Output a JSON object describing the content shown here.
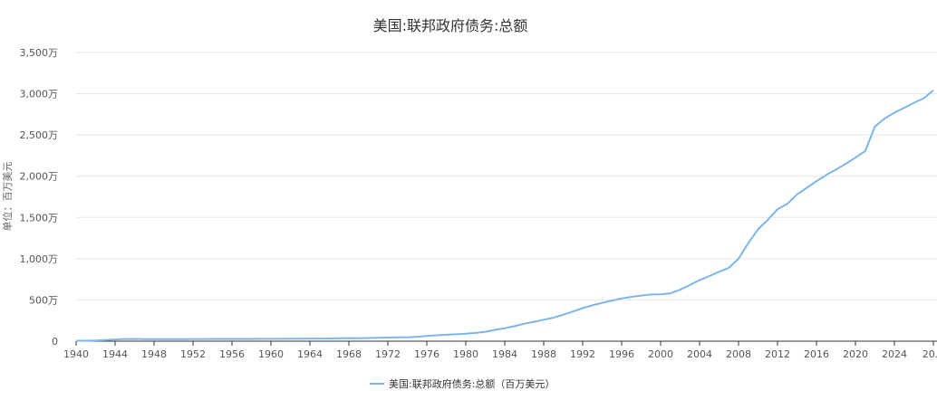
{
  "chart_data": {
    "type": "line",
    "title": "美国:联邦政府债务:总额",
    "ylabel": "单位：百万美元",
    "xlabel": "",
    "series": [
      {
        "name": "美国:联邦政府债务:总额（百万美元）",
        "color": "#7cb5ec",
        "x": [
          1940,
          1941,
          1942,
          1943,
          1944,
          1945,
          1946,
          1947,
          1948,
          1949,
          1950,
          1951,
          1952,
          1953,
          1954,
          1955,
          1956,
          1957,
          1958,
          1959,
          1960,
          1961,
          1962,
          1963,
          1964,
          1965,
          1966,
          1967,
          1968,
          1969,
          1970,
          1971,
          1972,
          1973,
          1974,
          1975,
          1976,
          1977,
          1978,
          1979,
          1980,
          1981,
          1982,
          1983,
          1984,
          1985,
          1986,
          1987,
          1988,
          1989,
          1990,
          1991,
          1992,
          1993,
          1994,
          1995,
          1996,
          1997,
          1998,
          1999,
          2000,
          2001,
          2002,
          2003,
          2004,
          2005,
          2006,
          2007,
          2008,
          2009,
          2010,
          2011,
          2012,
          2013,
          2014,
          2015,
          2016,
          2017,
          2018,
          2019,
          2020,
          2021,
          2022,
          2023,
          2024,
          2025,
          2026,
          2027,
          2028
        ],
        "values": [
          5100000,
          5800000,
          7900000,
          14200000,
          20400000,
          26000000,
          27100000,
          25700000,
          25200000,
          25300000,
          25700000,
          25500000,
          25900000,
          26600000,
          27100000,
          27400000,
          27300000,
          27200000,
          27900000,
          28500000,
          29000000,
          28900000,
          30300000,
          31000000,
          31600000,
          32100000,
          32800000,
          34100000,
          36800000,
          36600000,
          38100000,
          40800000,
          43700000,
          45800000,
          47500000,
          54100000,
          63100000,
          70900000,
          77600000,
          83000000,
          90800000,
          99500000,
          114200000,
          137000000,
          156400000,
          181700000,
          212100000,
          234500000,
          260100000,
          285700000,
          320700000,
          360000000,
          400200000,
          435100000,
          464300000,
          492100000,
          517400000,
          537300000,
          552600000,
          565600000,
          568000000,
          580000000,
          622800000,
          681300000,
          740000000,
          790000000,
          842000000,
          890000000,
          1000000000,
          1190000000,
          1356000000,
          1470000000,
          1600000000,
          1665000000,
          1780000000,
          1860000000,
          1940000000,
          2015000000,
          2080000000,
          2150000000,
          2225000000,
          2305000000,
          2603000000,
          2700000000,
          2770000000,
          2830000000,
          2890000000,
          2945000000,
          3040000000
        ]
      }
    ],
    "x_ticks": [
      "1940",
      "1944",
      "1948",
      "1952",
      "1956",
      "1960",
      "1964",
      "1968",
      "1972",
      "1976",
      "1980",
      "1984",
      "1988",
      "1992",
      "1996",
      "2000",
      "2004",
      "2008",
      "2012",
      "2016",
      "2020",
      "2024",
      "20..."
    ],
    "y_ticks": [
      "0",
      "500万",
      "1,000万",
      "1,500万",
      "2,000万",
      "2,500万",
      "3,000万",
      "3,500万"
    ],
    "ylim": [
      0,
      3500000000
    ],
    "xlim": [
      1940,
      2028
    ],
    "grid": true,
    "legend_position": "bottom-center"
  }
}
